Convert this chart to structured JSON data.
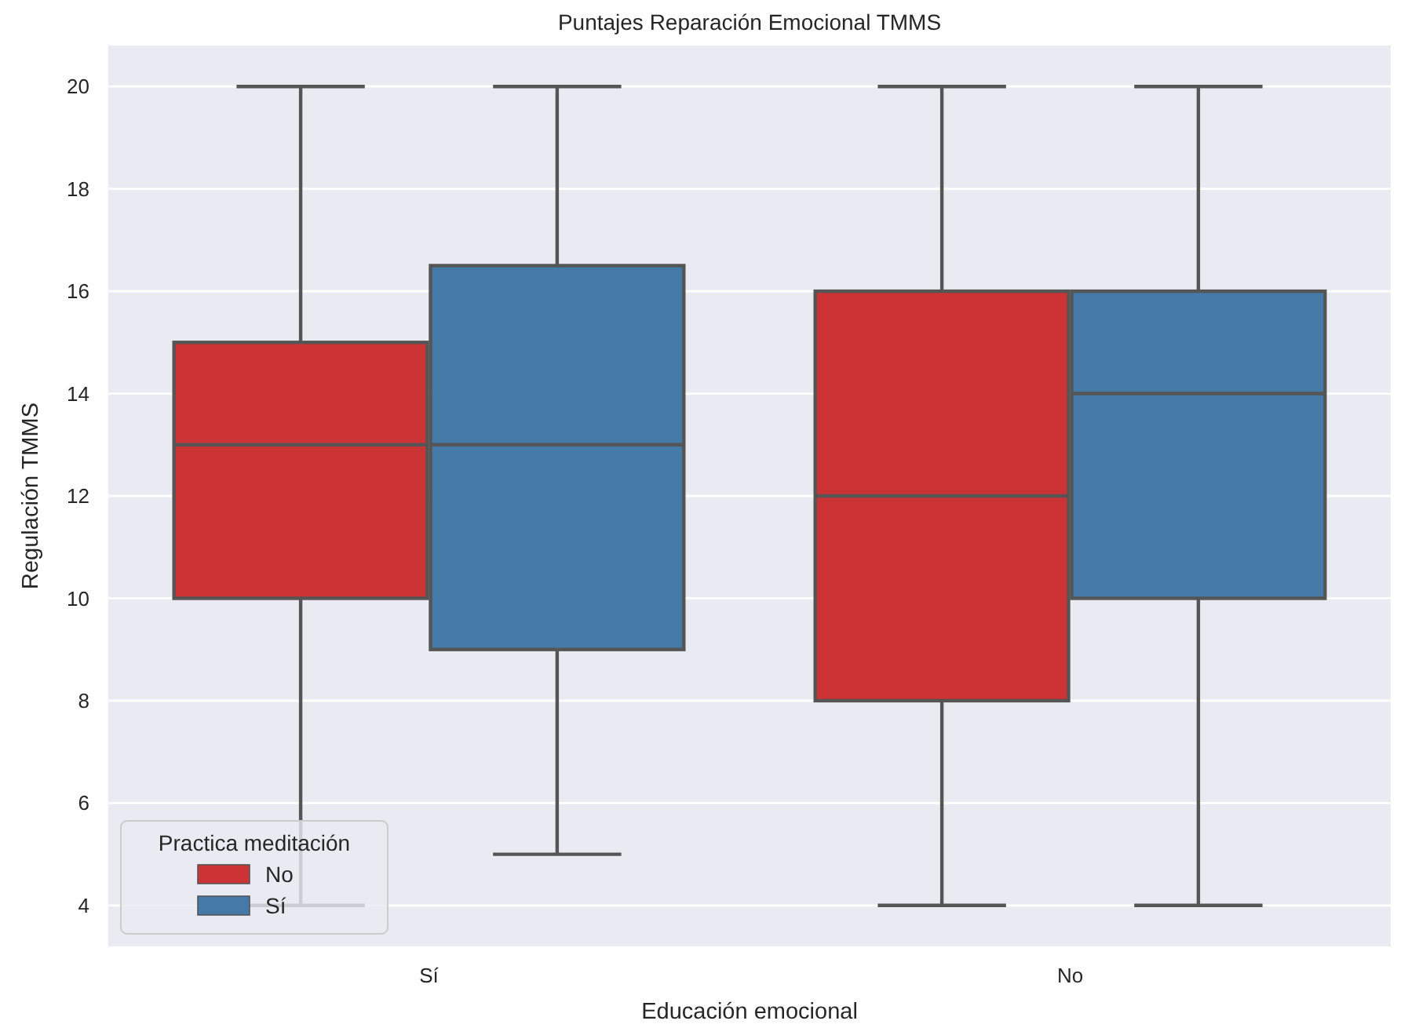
{
  "chart_data": {
    "type": "box",
    "title": "Puntajes Reparación Emocional TMMS",
    "xlabel": "Educación emocional",
    "ylabel": "Regulación TMMS",
    "categories": [
      "Sí",
      "No"
    ],
    "series": [
      {
        "name": "No",
        "color": "#cc3335",
        "boxes": [
          {
            "low": 4,
            "q1": 10,
            "median": 13,
            "q3": 15,
            "high": 20
          },
          {
            "low": 4,
            "q1": 8,
            "median": 12,
            "q3": 16,
            "high": 20
          }
        ]
      },
      {
        "name": "Sí",
        "color": "#4479a8",
        "boxes": [
          {
            "low": 5,
            "q1": 9,
            "median": 13,
            "q3": 16.5,
            "high": 20
          },
          {
            "low": 4,
            "q1": 10,
            "median": 14,
            "q3": 16,
            "high": 20
          }
        ]
      }
    ],
    "ylim": [
      3.2,
      20.8
    ],
    "yticks": [
      4,
      6,
      8,
      10,
      12,
      14,
      16,
      18,
      20
    ],
    "grid": "y",
    "legend": "bottom left",
    "legend_title": "Practica meditación"
  }
}
